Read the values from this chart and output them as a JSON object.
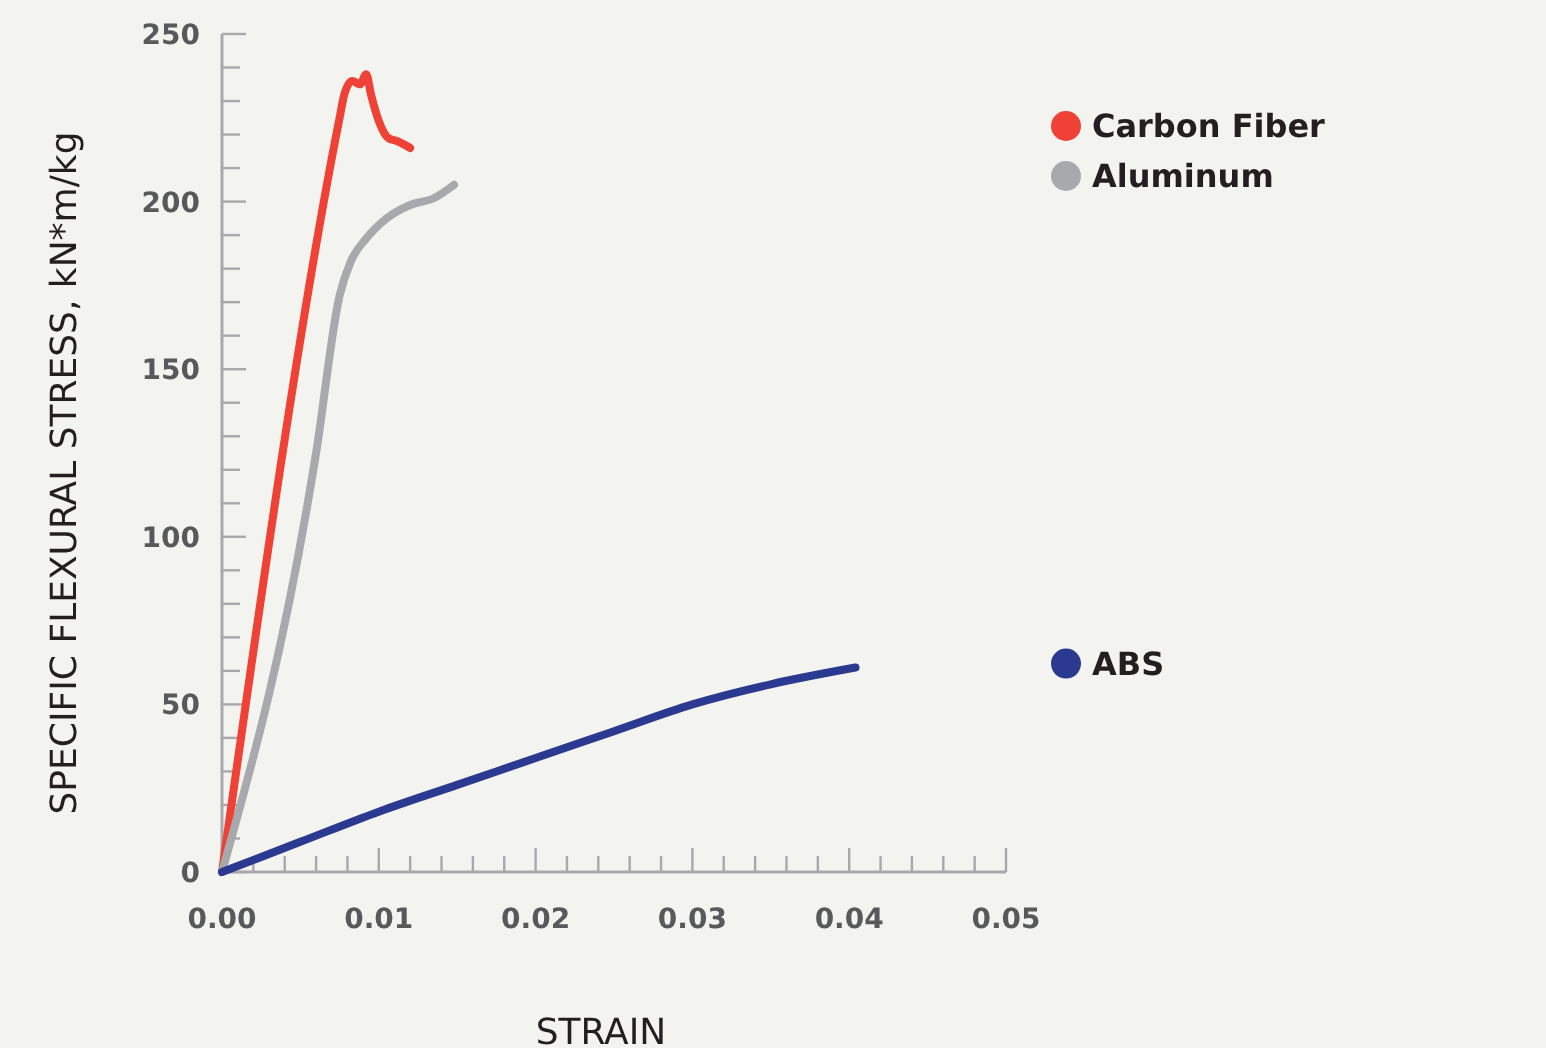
{
  "chart_data": {
    "type": "line",
    "xlabel": "STRAIN",
    "ylabel": "SPECIFIC FLEXURAL STRESS, kN*m/kg",
    "xlim": [
      0,
      0.05
    ],
    "ylim": [
      0,
      250
    ],
    "xticks": [
      {
        "value": 0,
        "label": "0.00"
      },
      {
        "value": 0.002,
        "label": null
      },
      {
        "value": 0.004,
        "label": null
      },
      {
        "value": 0.006,
        "label": null
      },
      {
        "value": 0.008,
        "label": null
      },
      {
        "value": 0.01,
        "label": "0.01"
      },
      {
        "value": 0.012,
        "label": null
      },
      {
        "value": 0.014,
        "label": null
      },
      {
        "value": 0.016,
        "label": null
      },
      {
        "value": 0.018,
        "label": null
      },
      {
        "value": 0.02,
        "label": "0.02"
      },
      {
        "value": 0.022,
        "label": null
      },
      {
        "value": 0.024,
        "label": null
      },
      {
        "value": 0.026,
        "label": null
      },
      {
        "value": 0.028,
        "label": null
      },
      {
        "value": 0.03,
        "label": "0.03"
      },
      {
        "value": 0.032,
        "label": null
      },
      {
        "value": 0.034,
        "label": null
      },
      {
        "value": 0.036,
        "label": null
      },
      {
        "value": 0.038,
        "label": null
      },
      {
        "value": 0.04,
        "label": "0.04"
      },
      {
        "value": 0.042,
        "label": null
      },
      {
        "value": 0.044,
        "label": null
      },
      {
        "value": 0.046,
        "label": null
      },
      {
        "value": 0.048,
        "label": null
      },
      {
        "value": 0.05,
        "label": "0.05"
      }
    ],
    "yticks": [
      0,
      {
        "value": 10,
        "label": null
      },
      {
        "value": 20,
        "label": null
      },
      {
        "value": 30,
        "label": null
      },
      {
        "value": 40,
        "label": null
      },
      50,
      {
        "value": 60,
        "label": null
      },
      {
        "value": 70,
        "label": null
      },
      {
        "value": 80,
        "label": null
      },
      {
        "value": 90,
        "label": null
      },
      100,
      {
        "value": 110,
        "label": null
      },
      {
        "value": 120,
        "label": null
      },
      {
        "value": 130,
        "label": null
      },
      {
        "value": 140,
        "label": null
      },
      150,
      {
        "value": 160,
        "label": null
      },
      {
        "value": 170,
        "label": null
      },
      {
        "value": 180,
        "label": null
      },
      {
        "value": 190,
        "label": null
      },
      200,
      {
        "value": 210,
        "label": null
      },
      {
        "value": 220,
        "label": null
      },
      {
        "value": 230,
        "label": null
      },
      {
        "value": 240,
        "label": null
      },
      250
    ],
    "grid": false,
    "legend": "right",
    "marker": "none",
    "line_style": "solid",
    "series": [
      {
        "name": "Carbon Fiber",
        "color": "#ef4136",
        "x": [
          0,
          0.0075,
          0.0078,
          0.0083,
          0.0088,
          0.0092,
          0.0095,
          0.01,
          0.0106,
          0.0112,
          0.012
        ],
        "values": [
          0,
          225,
          232,
          236,
          235,
          238,
          232,
          224,
          219,
          218,
          216
        ]
      },
      {
        "name": "Aluminum",
        "color": "#a7a9ac",
        "x": [
          0,
          0.006,
          0.0075,
          0.0082,
          0.0092,
          0.0105,
          0.012,
          0.0135,
          0.0148
        ],
        "values": [
          0,
          125,
          172,
          182,
          189,
          195,
          199,
          201,
          205
        ]
      },
      {
        "name": "ABS",
        "color": "#2b3990",
        "x": [
          0,
          0.005,
          0.01,
          0.015,
          0.02,
          0.025,
          0.03,
          0.035,
          0.0404
        ],
        "values": [
          0,
          9,
          18,
          26,
          34,
          42,
          50,
          56,
          61
        ]
      }
    ]
  }
}
